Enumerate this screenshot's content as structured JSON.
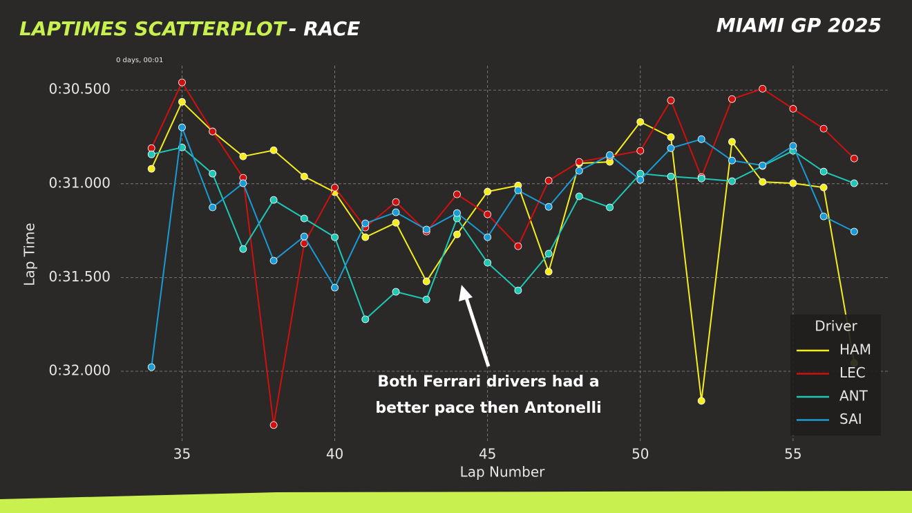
{
  "chart_data": {
    "type": "line",
    "title": "LAPTIMES SCATTERPLOT",
    "title_suffix": "- RACE",
    "event": "MIAMI GP 2025",
    "x_label": "Lap Number",
    "y_label": "Lap Time",
    "y_offset_label": "0 days, 00:01",
    "annotation": [
      "Both Ferrari drivers had a",
      "better pace then Antonelli"
    ],
    "legend_title": "Driver",
    "legend": "lower right",
    "grid": true,
    "x": [
      34,
      35,
      36,
      37,
      38,
      39,
      40,
      41,
      42,
      43,
      44,
      45,
      46,
      47,
      48,
      49,
      50,
      51,
      52,
      53,
      54,
      55,
      56,
      57
    ],
    "xlim": [
      33.0,
      58.1
    ],
    "xticks": [
      35,
      40,
      45,
      50,
      55
    ],
    "ylim": [
      32.38,
      30.37
    ],
    "yticks": [
      {
        "value": 30.5,
        "label": "0:30.500"
      },
      {
        "value": 31.0,
        "label": "0:31.000"
      },
      {
        "value": 31.5,
        "label": "0:31.500"
      },
      {
        "value": 32.0,
        "label": "0:32.000"
      }
    ],
    "series": [
      {
        "name": "HAM",
        "color": "#f5ee1c",
        "values": [
          30.92,
          30.563,
          30.721,
          30.854,
          30.821,
          30.961,
          31.045,
          31.285,
          31.208,
          31.521,
          31.27,
          31.042,
          31.009,
          31.469,
          30.891,
          30.883,
          30.67,
          30.751,
          32.158,
          30.776,
          30.99,
          30.997,
          31.02,
          31.956
        ]
      },
      {
        "name": "LEC",
        "color": "#d0100f",
        "values": [
          30.81,
          30.459,
          30.721,
          30.968,
          32.287,
          31.318,
          31.02,
          31.233,
          31.097,
          31.255,
          31.056,
          31.163,
          31.333,
          30.983,
          30.883,
          30.854,
          30.824,
          30.555,
          30.964,
          30.548,
          30.493,
          30.6,
          30.706,
          30.865
        ]
      },
      {
        "name": "ANT",
        "color": "#1ec8b4",
        "values": [
          30.843,
          30.806,
          30.946,
          31.348,
          31.086,
          31.185,
          31.285,
          31.723,
          31.576,
          31.617,
          31.185,
          31.421,
          31.569,
          31.373,
          31.067,
          31.126,
          30.946,
          30.961,
          30.972,
          30.986,
          30.905,
          30.824,
          30.935,
          30.997
        ]
      },
      {
        "name": "SAI",
        "color": "#1a9bd6",
        "values": [
          31.978,
          30.699,
          31.126,
          30.997,
          31.41,
          31.281,
          31.554,
          31.211,
          31.152,
          31.244,
          31.156,
          31.285,
          31.035,
          31.123,
          30.931,
          30.847,
          30.979,
          30.81,
          30.762,
          30.876,
          30.902,
          30.798,
          31.174,
          31.255
        ]
      }
    ]
  }
}
